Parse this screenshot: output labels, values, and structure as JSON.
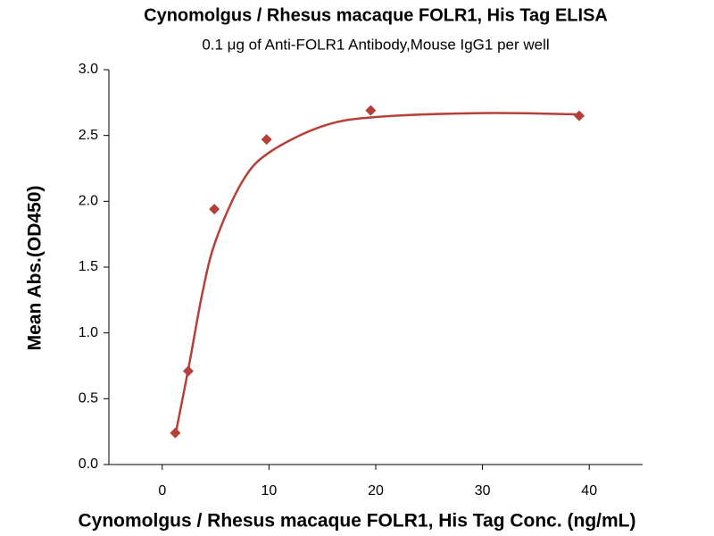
{
  "chart_data": {
    "type": "scatter",
    "title": "Cynomolgus / Rhesus macaque FOLR1, His Tag ELISA",
    "subtitle": "0.1 μg of Anti-FOLR1 Antibody,Mouse IgG1 per well",
    "x_label": "Cynomolgus / Rhesus macaque FOLR1, His Tag Conc. (ng/mL)",
    "y_label": "Mean Abs.(OD450)",
    "x": [
      1.22,
      2.44,
      4.88,
      9.77,
      19.53,
      39.06
    ],
    "values": [
      0.24,
      0.71,
      1.94,
      2.47,
      2.69,
      2.65
    ],
    "color": "#b5403a",
    "fit": {
      "x": [
        1.22,
        2.5,
        3.75,
        5,
        7.5,
        10,
        15,
        20,
        30,
        39.06
      ],
      "values": [
        0.22,
        0.75,
        1.3,
        1.7,
        2.15,
        2.37,
        2.57,
        2.64,
        2.67,
        2.66
      ]
    },
    "xlim": [
      -5,
      45
    ],
    "ylim": [
      0,
      3
    ],
    "xticks": [
      0,
      10,
      20,
      30,
      40
    ],
    "yticks": [
      {
        "value": 0,
        "label": "0.0"
      },
      0.5,
      {
        "value": 1,
        "label": "1.0"
      },
      1.5,
      {
        "value": 2,
        "label": "2.0"
      },
      2.5,
      {
        "value": 3,
        "label": "3.0"
      }
    ]
  }
}
